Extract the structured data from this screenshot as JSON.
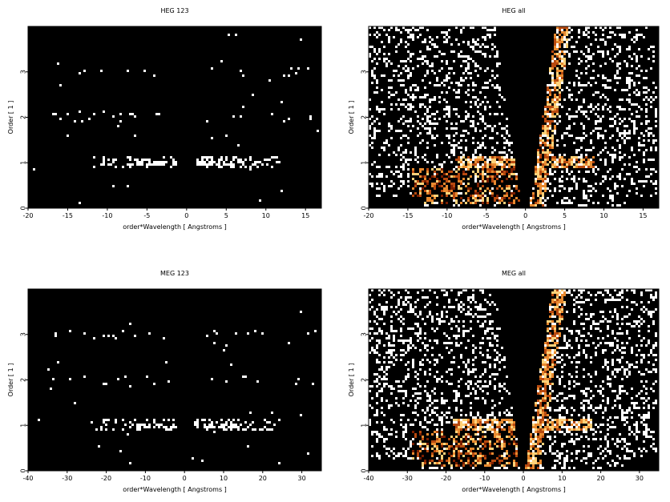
{
  "figure": {
    "panels": [
      {
        "id": "heg-123",
        "title": "HEG 123",
        "xlabel": "order*Wavelength [ Angstroms ]",
        "ylabel": "Order [ 1 ]",
        "xlim": [
          -20,
          17
        ],
        "ylim": [
          0,
          4
        ],
        "xticks": [
          -20,
          -15,
          -10,
          -5,
          0,
          5,
          10,
          15
        ],
        "yticks": [
          0,
          1,
          2,
          3
        ],
        "mode": "sparse-orders",
        "fan_half_width": 3.3,
        "density": 0.9
      },
      {
        "id": "heg-all",
        "title": "HEG all",
        "xlabel": "order*Wavelength [ Angstroms ]",
        "ylabel": "Order [ 1 ]",
        "xlim": [
          -20,
          17
        ],
        "ylim": [
          0,
          4
        ],
        "xticks": [
          -20,
          -15,
          -10,
          -5,
          0,
          5,
          10,
          15
        ],
        "yticks": [
          0,
          1,
          2,
          3
        ],
        "mode": "full-fan",
        "fan_half_width": 3.4,
        "density": 0.24
      },
      {
        "id": "meg-123",
        "title": "MEG 123",
        "xlabel": "order*Wavelength [ Angstroms ]",
        "ylabel": "Order [ 1 ]",
        "xlim": [
          -40,
          35
        ],
        "ylim": [
          0,
          4
        ],
        "xticks": [
          -40,
          -30,
          -20,
          -10,
          0,
          10,
          20,
          30
        ],
        "yticks": [
          0,
          1,
          2,
          3
        ],
        "mode": "sparse-orders",
        "fan_half_width": 6.5,
        "density": 0.9
      },
      {
        "id": "meg-all",
        "title": "MEG all",
        "xlabel": "order*Wavelength [ Angstroms ]",
        "ylabel": "Order [ 1 ]",
        "xlim": [
          -40,
          35
        ],
        "ylim": [
          0,
          4
        ],
        "xticks": [
          -40,
          -30,
          -20,
          -10,
          0,
          10,
          20,
          30
        ],
        "yticks": [
          0,
          1,
          2,
          3
        ],
        "mode": "full-fan",
        "fan_half_width": 7.0,
        "density": 0.27
      }
    ]
  },
  "chart_data": [
    {
      "type": "heatmap",
      "title": "HEG 123",
      "xlabel": "order*Wavelength [ Angstroms ]",
      "ylabel": "Order [ 1 ]",
      "xlim": [
        -20,
        17
      ],
      "ylim": [
        0,
        4
      ],
      "series": [
        {
          "order": 1,
          "x_ranges": [
            [
              -13,
              -2
            ],
            [
              2,
              10
            ]
          ]
        },
        {
          "order": 2,
          "x_ranges": [
            [
              -16,
              -2
            ],
            [
              2,
              16
            ]
          ]
        },
        {
          "order": 3,
          "x_ranges": [
            [
              -14,
              -2
            ],
            [
              3,
              12
            ]
          ]
        }
      ]
    },
    {
      "type": "heatmap",
      "title": "HEG all",
      "xlabel": "order*Wavelength [ Angstroms ]",
      "ylabel": "Order [ 1 ]",
      "xlim": [
        -20,
        17
      ],
      "ylim": [
        0,
        4
      ],
      "series": [
        {
          "order": 1,
          "x_ranges": [
            [
              -13,
              -2
            ],
            [
              2,
              10
            ]
          ]
        }
      ]
    },
    {
      "type": "heatmap",
      "title": "MEG 123",
      "xlabel": "order*Wavelength [ Angstroms ]",
      "ylabel": "Order [ 1 ]",
      "xlim": [
        -40,
        35
      ],
      "ylim": [
        0,
        4
      ],
      "series": [
        {
          "order": 1,
          "x_ranges": [
            [
              -20,
              -4
            ],
            [
              4,
              30
            ]
          ]
        },
        {
          "order": 2,
          "x_ranges": [
            [
              -33,
              -4
            ],
            [
              4,
              32
            ]
          ]
        },
        {
          "order": 3,
          "x_ranges": [
            [
              -33,
              -4
            ],
            [
              5,
              33
            ]
          ]
        }
      ]
    },
    {
      "type": "heatmap",
      "title": "MEG all",
      "xlabel": "order*Wavelength [ Angstroms ]",
      "ylabel": "Order [ 1 ]",
      "xlim": [
        -40,
        35
      ],
      "ylim": [
        0,
        4
      ],
      "series": [
        {
          "order": 1,
          "x_ranges": [
            [
              -26,
              -4
            ],
            [
              4,
              12
            ]
          ]
        }
      ]
    }
  ],
  "colors": {
    "background": "#000000",
    "colormap": [
      "#3a0a00",
      "#7a1e00",
      "#b84a10",
      "#e88a30",
      "#ffd27a",
      "#ffffff"
    ]
  }
}
